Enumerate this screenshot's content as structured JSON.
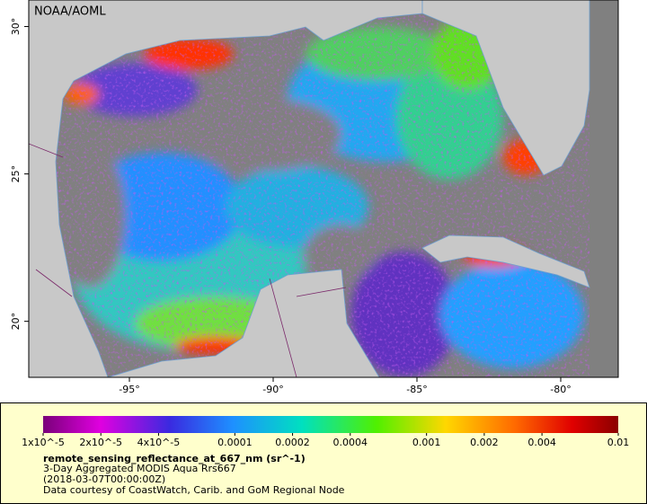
{
  "map": {
    "label": "NOAA/AOML",
    "xlim": [
      -98.5,
      -78
    ],
    "ylim": [
      18.1,
      30.9
    ],
    "xticks": [
      {
        "value": -95,
        "label": "-95°"
      },
      {
        "value": -90,
        "label": "-90°"
      },
      {
        "value": -85,
        "label": "-85°"
      },
      {
        "value": -80,
        "label": "-80°"
      }
    ],
    "yticks": [
      {
        "value": 30,
        "label": "30°"
      },
      {
        "value": 25,
        "label": "25°"
      },
      {
        "value": 20,
        "label": "20°"
      }
    ]
  },
  "colorbar": {
    "scale": "log",
    "lim": [
      1e-05,
      0.01
    ],
    "ticks": [
      {
        "value": 1e-05,
        "label": "1x10^-5"
      },
      {
        "value": 2e-05,
        "label": "2x10^-5"
      },
      {
        "value": 4e-05,
        "label": "4x10^-5"
      },
      0.0001,
      0.0002,
      0.0004,
      0.001,
      0.002,
      0.004,
      0.01
    ]
  },
  "legend": {
    "title": "remote_sensing_reflectance_at_667_nm (sr^-1)",
    "lines": [
      "3-Day Aggregated MODIS Aqua Rrs667",
      "(2018-03-07T00:00:00Z)",
      "Data courtesy of CoastWatch, Carib. and GoM Regional Node"
    ]
  }
}
